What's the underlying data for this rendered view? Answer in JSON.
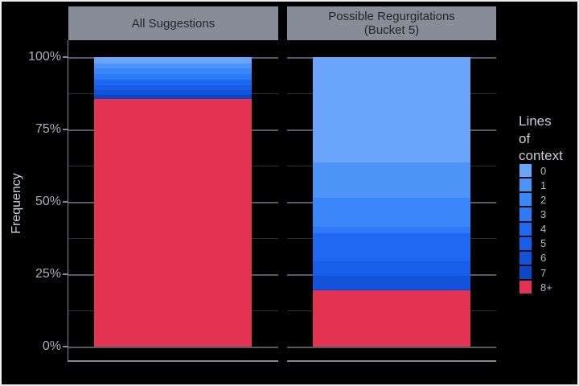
{
  "chart_data": {
    "type": "bar",
    "stacking": "percent",
    "orientation": "vertical",
    "title": "",
    "ylabel": "Frequency",
    "ylim": [
      0,
      100
    ],
    "yticks": [
      100,
      75,
      50,
      25,
      0
    ],
    "ytick_labels": [
      "100%",
      "75%",
      "50%",
      "25%",
      "0%"
    ],
    "grid": {
      "major": [
        0,
        25,
        50,
        75,
        100
      ],
      "minor": [
        12.5,
        37.5,
        62.5,
        87.5
      ]
    },
    "facets": [
      {
        "title_lines": [
          "All Suggestions"
        ]
      },
      {
        "title_lines": [
          "Possible Regurgitations",
          "(Bucket 5)"
        ]
      }
    ],
    "legend_title": "Lines of context",
    "legend_title_lines": [
      "Lines",
      "of",
      "context"
    ],
    "legend_position": "right",
    "categories": [
      "0",
      "1",
      "2",
      "3",
      "4",
      "5",
      "6",
      "7",
      "8+"
    ],
    "colors": [
      "#6aa5fb",
      "#4d94f9",
      "#3987f8",
      "#2d7bf6",
      "#1f69f2",
      "#175ee8",
      "#1353d9",
      "#0d47c4",
      "#e23352"
    ],
    "series": [
      {
        "name": "All Suggestions",
        "values": [
          2.2,
          1.8,
          1.8,
          1.9,
          1.9,
          1.8,
          1.7,
          1.3,
          85.6
        ]
      },
      {
        "name": "Possible Regurgitations (Bucket 5)",
        "values": [
          36.3,
          12.3,
          10.0,
          2.2,
          9.8,
          5.0,
          4.7,
          0.3,
          19.4
        ]
      }
    ]
  },
  "theme": {
    "background": "#000000",
    "strip_bg": "#868d98",
    "strip_text": "#23272d",
    "grid_major": "#575c64",
    "grid_minor": "#2e3137",
    "axis_line": "#848a93",
    "tick_text": "#a9aeb6",
    "axis_title_text": "#c9ced5",
    "legend_text": "#b4b9c0",
    "frame_border": "#ededed"
  }
}
